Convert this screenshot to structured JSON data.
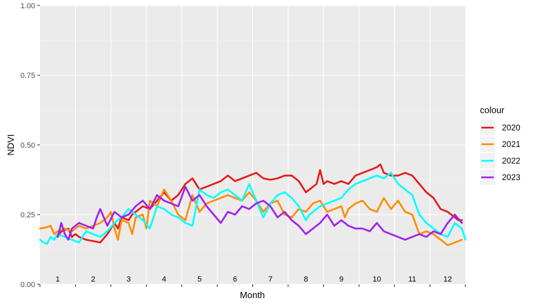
{
  "chart_data": {
    "type": "line",
    "title": "",
    "xlabel": "Month",
    "ylabel": "NDVI",
    "ylim": [
      0,
      1
    ],
    "xlim": [
      0.5,
      12.5
    ],
    "y_ticks": [
      0,
      0.25,
      0.5,
      0.75,
      1
    ],
    "y_tick_labels": [
      "0.00",
      "0.25",
      "0.50",
      "0.75",
      "1.00"
    ],
    "x_ticks": [
      1,
      2,
      3,
      4,
      5,
      6,
      7,
      8,
      9,
      10,
      11,
      12
    ],
    "x_tick_labels": [
      "1",
      "2",
      "3",
      "4",
      "5",
      "6",
      "7",
      "8",
      "9",
      "10",
      "11",
      "12"
    ],
    "grid": true,
    "legend": {
      "title": "colour",
      "position": "right"
    },
    "series": [
      {
        "name": "2020",
        "color": "#e41a1c",
        "x": [
          1.0,
          1.1,
          1.3,
          1.4,
          1.5,
          1.6,
          1.8,
          2.0,
          2.2,
          2.4,
          2.5,
          2.6,
          2.7,
          2.8,
          3.0,
          3.1,
          3.2,
          3.4,
          3.6,
          3.8,
          4.0,
          4.2,
          4.4,
          4.6,
          4.8,
          5.0,
          5.2,
          5.4,
          5.6,
          5.8,
          6.0,
          6.2,
          6.4,
          6.6,
          6.8,
          7.0,
          7.2,
          7.4,
          7.6,
          7.8,
          8.0,
          8.2,
          8.3,
          8.4,
          8.5,
          8.6,
          8.8,
          9.0,
          9.2,
          9.4,
          9.6,
          9.8,
          10.0,
          10.1,
          10.2,
          10.4,
          10.6,
          10.8,
          11.0,
          11.2,
          11.4,
          11.6,
          11.8,
          12.0,
          12.2,
          12.3,
          12.4
        ],
        "values": [
          0.17,
          0.19,
          0.2,
          0.17,
          0.18,
          0.17,
          0.16,
          0.155,
          0.15,
          0.18,
          0.2,
          0.22,
          0.2,
          0.24,
          0.23,
          0.25,
          0.26,
          0.28,
          0.27,
          0.3,
          0.33,
          0.3,
          0.32,
          0.36,
          0.38,
          0.34,
          0.35,
          0.36,
          0.37,
          0.39,
          0.37,
          0.38,
          0.39,
          0.4,
          0.38,
          0.375,
          0.38,
          0.39,
          0.39,
          0.37,
          0.33,
          0.35,
          0.36,
          0.41,
          0.36,
          0.37,
          0.36,
          0.37,
          0.36,
          0.39,
          0.4,
          0.41,
          0.42,
          0.43,
          0.4,
          0.39,
          0.39,
          0.4,
          0.39,
          0.36,
          0.33,
          0.31,
          0.27,
          0.26,
          0.24,
          0.23,
          0.23
        ]
      },
      {
        "name": "2021",
        "color": "#ff8c00",
        "x": [
          0.5,
          0.7,
          0.8,
          0.9,
          1.0,
          1.2,
          1.4,
          1.6,
          1.8,
          2.0,
          2.2,
          2.4,
          2.5,
          2.6,
          2.7,
          2.8,
          3.0,
          3.1,
          3.2,
          3.4,
          3.5,
          3.6,
          3.8,
          4.0,
          4.2,
          4.4,
          4.6,
          4.8,
          5.0,
          5.2,
          5.4,
          5.6,
          5.8,
          6.0,
          6.2,
          6.4,
          6.6,
          6.8,
          7.0,
          7.2,
          7.4,
          7.6,
          7.8,
          8.0,
          8.2,
          8.4,
          8.6,
          8.8,
          9.0,
          9.1,
          9.2,
          9.4,
          9.6,
          9.8,
          10.0,
          10.2,
          10.4,
          10.6,
          10.8,
          11.0,
          11.2,
          11.4,
          11.6,
          11.8,
          12.0,
          12.2,
          12.4
        ],
        "values": [
          0.2,
          0.205,
          0.21,
          0.18,
          0.19,
          0.2,
          0.19,
          0.21,
          0.2,
          0.21,
          0.22,
          0.24,
          0.26,
          0.2,
          0.16,
          0.23,
          0.22,
          0.18,
          0.24,
          0.25,
          0.2,
          0.3,
          0.28,
          0.34,
          0.3,
          0.25,
          0.23,
          0.32,
          0.26,
          0.29,
          0.3,
          0.31,
          0.32,
          0.31,
          0.3,
          0.33,
          0.3,
          0.26,
          0.29,
          0.3,
          0.25,
          0.24,
          0.27,
          0.26,
          0.29,
          0.3,
          0.26,
          0.27,
          0.28,
          0.24,
          0.27,
          0.29,
          0.3,
          0.27,
          0.26,
          0.31,
          0.27,
          0.3,
          0.26,
          0.25,
          0.18,
          0.19,
          0.18,
          0.16,
          0.14,
          0.15,
          0.16
        ]
      },
      {
        "name": "2022",
        "color": "#00ffff",
        "x": [
          0.5,
          0.6,
          0.7,
          0.8,
          0.9,
          1.0,
          1.2,
          1.4,
          1.6,
          1.8,
          2.0,
          2.2,
          2.4,
          2.6,
          2.8,
          3.0,
          3.2,
          3.4,
          3.6,
          3.8,
          4.0,
          4.2,
          4.4,
          4.6,
          4.8,
          5.0,
          5.2,
          5.4,
          5.6,
          5.8,
          6.0,
          6.2,
          6.4,
          6.6,
          6.8,
          7.0,
          7.2,
          7.4,
          7.6,
          7.8,
          8.0,
          8.1,
          8.2,
          8.4,
          8.6,
          8.8,
          9.0,
          9.2,
          9.4,
          9.6,
          9.8,
          10.0,
          10.2,
          10.4,
          10.6,
          10.8,
          11.0,
          11.2,
          11.4,
          11.6,
          11.8,
          12.0,
          12.2,
          12.4,
          12.5
        ],
        "values": [
          0.16,
          0.15,
          0.145,
          0.17,
          0.16,
          0.18,
          0.17,
          0.16,
          0.15,
          0.19,
          0.18,
          0.17,
          0.19,
          0.22,
          0.24,
          0.27,
          0.25,
          0.23,
          0.2,
          0.28,
          0.27,
          0.25,
          0.24,
          0.22,
          0.21,
          0.34,
          0.32,
          0.31,
          0.33,
          0.34,
          0.32,
          0.3,
          0.36,
          0.3,
          0.24,
          0.29,
          0.32,
          0.33,
          0.31,
          0.28,
          0.23,
          0.25,
          0.26,
          0.28,
          0.29,
          0.3,
          0.31,
          0.34,
          0.36,
          0.37,
          0.38,
          0.39,
          0.38,
          0.4,
          0.36,
          0.34,
          0.32,
          0.25,
          0.22,
          0.2,
          0.18,
          0.17,
          0.22,
          0.2,
          0.16
        ]
      },
      {
        "name": "2023",
        "color": "#a020f0",
        "x": [
          1.0,
          1.1,
          1.2,
          1.3,
          1.4,
          1.6,
          1.8,
          2.0,
          2.1,
          2.2,
          2.4,
          2.6,
          2.8,
          3.0,
          3.2,
          3.4,
          3.6,
          3.8,
          4.0,
          4.2,
          4.4,
          4.6,
          4.8,
          5.0,
          5.2,
          5.4,
          5.6,
          5.8,
          6.0,
          6.2,
          6.4,
          6.6,
          6.8,
          7.0,
          7.2,
          7.4,
          7.6,
          7.8,
          8.0,
          8.2,
          8.4,
          8.6,
          8.8,
          9.0,
          9.2,
          9.4,
          9.6,
          9.8,
          10.0,
          10.2,
          10.4,
          10.6,
          10.8,
          11.0,
          11.2,
          11.4,
          11.6,
          11.8,
          12.0,
          12.2,
          12.4
        ],
        "values": [
          0.17,
          0.22,
          0.18,
          0.16,
          0.2,
          0.22,
          0.21,
          0.2,
          0.24,
          0.27,
          0.21,
          0.26,
          0.24,
          0.25,
          0.28,
          0.3,
          0.27,
          0.32,
          0.3,
          0.29,
          0.28,
          0.35,
          0.3,
          0.32,
          0.28,
          0.25,
          0.22,
          0.26,
          0.25,
          0.28,
          0.27,
          0.29,
          0.3,
          0.28,
          0.24,
          0.26,
          0.23,
          0.21,
          0.18,
          0.2,
          0.22,
          0.25,
          0.21,
          0.23,
          0.21,
          0.2,
          0.2,
          0.19,
          0.22,
          0.19,
          0.18,
          0.17,
          0.16,
          0.17,
          0.18,
          0.17,
          0.19,
          0.18,
          0.22,
          0.25,
          0.22
        ]
      }
    ]
  }
}
